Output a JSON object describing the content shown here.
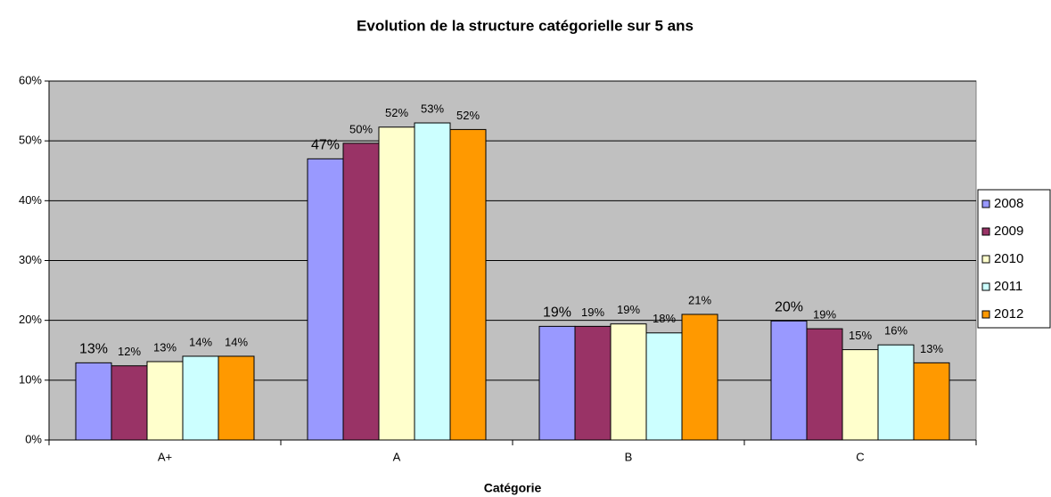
{
  "chart_data": {
    "type": "bar",
    "title": "Evolution de la structure catégorielle sur 5 ans",
    "x_label": "Catégorie",
    "categories": [
      "A+",
      "A",
      "B",
      "C"
    ],
    "series": [
      {
        "name": "2008",
        "color": "#9999ff",
        "values": [
          12.9,
          47,
          19,
          19.9
        ],
        "value_labels": [
          "13%",
          "47%",
          "19%",
          "20%"
        ]
      },
      {
        "name": "2009",
        "color": "#993366",
        "values": [
          12.4,
          49.6,
          19,
          18.6
        ],
        "value_labels": [
          "12%",
          "50%",
          "19%",
          "19%"
        ]
      },
      {
        "name": "2010",
        "color": "#ffffcc",
        "values": [
          13.1,
          52.3,
          19.4,
          15.1
        ],
        "value_labels": [
          "13%",
          "52%",
          "19%",
          "15%"
        ]
      },
      {
        "name": "2011",
        "color": "#ccffff",
        "values": [
          14,
          53,
          17.9,
          15.9
        ],
        "value_labels": [
          "14%",
          "53%",
          "18%",
          "16%"
        ]
      },
      {
        "name": "2012",
        "color": "#ff9900",
        "values": [
          14,
          51.9,
          21,
          12.9
        ],
        "value_labels": [
          "14%",
          "52%",
          "21%",
          "13%"
        ]
      }
    ],
    "ylim": [
      0,
      60
    ],
    "yticks": [
      {
        "value": 0,
        "label": "0%"
      },
      {
        "value": 10,
        "label": "10%"
      },
      {
        "value": 20,
        "label": "20%"
      },
      {
        "value": 30,
        "label": "30%"
      },
      {
        "value": 40,
        "label": "40%"
      },
      {
        "value": 50,
        "label": "50%"
      },
      {
        "value": 60,
        "label": "60%"
      }
    ],
    "grid": true,
    "legend": "right",
    "plot_background": "#c0c0c0"
  }
}
